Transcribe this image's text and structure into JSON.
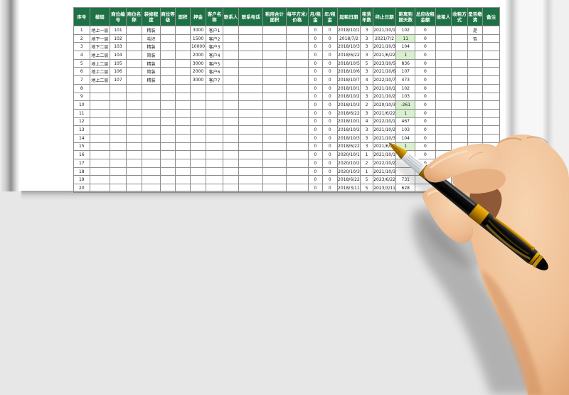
{
  "colors": {
    "header_green": "#1e7145",
    "highlight_green": "#d8f0ce"
  },
  "table": {
    "headers": [
      "序号",
      "楼层",
      "商位编号",
      "商位名称",
      "装修程度",
      "商位等级",
      "面积",
      "押金",
      "客户名称",
      "联系人",
      "联系电话",
      "租用合计面积",
      "每平方米/价格",
      "月/租金",
      "年/租金",
      "起租日期",
      "租赁年数",
      "终止日期",
      "距离到期天数",
      "总应收租金额",
      "收租人",
      "收租方式",
      "是否缴清",
      "备注"
    ],
    "rows": [
      [
        "1",
        "地上一层",
        "101",
        "",
        "精装",
        "",
        "",
        "3000",
        "客户1",
        "",
        "",
        "",
        "",
        "0",
        "0",
        "2018/10/1",
        "3",
        "2021/10/1",
        "102",
        "0",
        "",
        "",
        "是",
        ""
      ],
      [
        "2",
        "地下一层",
        "102",
        "",
        "毛坯",
        "",
        "",
        "1500",
        "客户2",
        "",
        "",
        "",
        "",
        "0",
        "0",
        "2018/7/2",
        "3",
        "2021/7/2",
        "11",
        "0",
        "",
        "",
        "否",
        ""
      ],
      [
        "3",
        "地下二层",
        "103",
        "",
        "精装",
        "",
        "",
        "10000",
        "客户3",
        "",
        "",
        "",
        "",
        "0",
        "0",
        "2018/10/3",
        "3",
        "2021/10/3",
        "104",
        "0",
        "",
        "",
        "",
        ""
      ],
      [
        "4",
        "地上二层",
        "104",
        "",
        "简装",
        "",
        "",
        "2000",
        "客户4",
        "",
        "",
        "",
        "",
        "0",
        "0",
        "2018/6/22",
        "3",
        "2021/6/22",
        "1",
        "0",
        "",
        "",
        "",
        ""
      ],
      [
        "5",
        "地上二层",
        "105",
        "",
        "精装",
        "",
        "",
        "3000",
        "客户5",
        "",
        "",
        "",
        "",
        "0",
        "0",
        "2018/10/5",
        "5",
        "2023/10/5",
        "836",
        "0",
        "",
        "",
        "",
        ""
      ],
      [
        "6",
        "地上二层",
        "106",
        "",
        "简装",
        "",
        "",
        "2000",
        "客户6",
        "",
        "",
        "",
        "",
        "0",
        "0",
        "2018/10/6",
        "3",
        "2021/10/6",
        "107",
        "0",
        "",
        "",
        "",
        ""
      ],
      [
        "7",
        "地上二层",
        "107",
        "",
        "精装",
        "",
        "",
        "3000",
        "客户7",
        "",
        "",
        "",
        "",
        "0",
        "0",
        "2018/10/7",
        "4",
        "2022/10/7",
        "473",
        "0",
        "",
        "",
        "",
        ""
      ],
      [
        "8",
        "",
        "",
        "",
        "",
        "",
        "",
        "",
        "",
        "",
        "",
        "",
        "",
        "0",
        "0",
        "2018/10/1",
        "3",
        "2021/10/1",
        "102",
        "0",
        "",
        "",
        "",
        ""
      ],
      [
        "9",
        "",
        "",
        "",
        "",
        "",
        "",
        "",
        "",
        "",
        "",
        "",
        "",
        "0",
        "0",
        "2018/10/2",
        "3",
        "2021/10/2",
        "103",
        "0",
        "",
        "",
        "",
        ""
      ],
      [
        "10",
        "",
        "",
        "",
        "",
        "",
        "",
        "",
        "",
        "",
        "",
        "",
        "",
        "0",
        "0",
        "2018/10/3",
        "2",
        "2020/10/3",
        "-261",
        "0",
        "",
        "",
        "",
        ""
      ],
      [
        "11",
        "",
        "",
        "",
        "",
        "",
        "",
        "",
        "",
        "",
        "",
        "",
        "",
        "0",
        "0",
        "2018/6/22",
        "3",
        "2021/6/22",
        "1",
        "0",
        "",
        "",
        "",
        ""
      ],
      [
        "12",
        "",
        "",
        "",
        "",
        "",
        "",
        "",
        "",
        "",
        "",
        "",
        "",
        "0",
        "0",
        "2018/10/1",
        "4",
        "2022/10/1",
        "467",
        "0",
        "",
        "",
        "",
        ""
      ],
      [
        "13",
        "",
        "",
        "",
        "",
        "",
        "",
        "",
        "",
        "",
        "",
        "",
        "",
        "0",
        "0",
        "2018/10/2",
        "3",
        "2021/10/2",
        "103",
        "0",
        "",
        "",
        "",
        ""
      ],
      [
        "14",
        "",
        "",
        "",
        "",
        "",
        "",
        "",
        "",
        "",
        "",
        "",
        "",
        "0",
        "0",
        "2018/10/3",
        "3",
        "2021/10/3",
        "104",
        "0",
        "",
        "",
        "",
        ""
      ],
      [
        "15",
        "",
        "",
        "",
        "",
        "",
        "",
        "",
        "",
        "",
        "",
        "",
        "",
        "0",
        "0",
        "2018/6/22",
        "3",
        "2021/6/22",
        "1",
        "0",
        "",
        "",
        "",
        ""
      ],
      [
        "16",
        "",
        "",
        "",
        "",
        "",
        "",
        "",
        "",
        "",
        "",
        "",
        "",
        "0",
        "0",
        "2020/10/1",
        "1",
        "2021/10/1",
        "102",
        "0",
        "",
        "",
        "",
        ""
      ],
      [
        "17",
        "",
        "",
        "",
        "",
        "",
        "",
        "",
        "",
        "",
        "",
        "",
        "",
        "0",
        "0",
        "2020/10/2",
        "2",
        "2022/10/2",
        "",
        "0",
        "",
        "",
        "",
        ""
      ],
      [
        "18",
        "",
        "",
        "",
        "",
        "",
        "",
        "",
        "",
        "",
        "",
        "",
        "",
        "0",
        "0",
        "2020/10/3",
        "1",
        "2021/10/3",
        "",
        "",
        "",
        "",
        "",
        ""
      ],
      [
        "19",
        "",
        "",
        "",
        "",
        "",
        "",
        "",
        "",
        "",
        "",
        "",
        "",
        "0",
        "0",
        "2018/6/22",
        "5",
        "2023/6/22",
        "731",
        "",
        "",
        "",
        "",
        ""
      ],
      [
        "20",
        "",
        "",
        "",
        "",
        "",
        "",
        "",
        "",
        "",
        "",
        "",
        "",
        "0",
        "0",
        "2018/3/11",
        "5",
        "2023/3/11",
        "628",
        "",
        "",
        "",
        "",
        ""
      ]
    ],
    "highlight_days_rows": [
      2,
      4,
      10,
      11,
      15
    ],
    "days_column_index": 18
  }
}
